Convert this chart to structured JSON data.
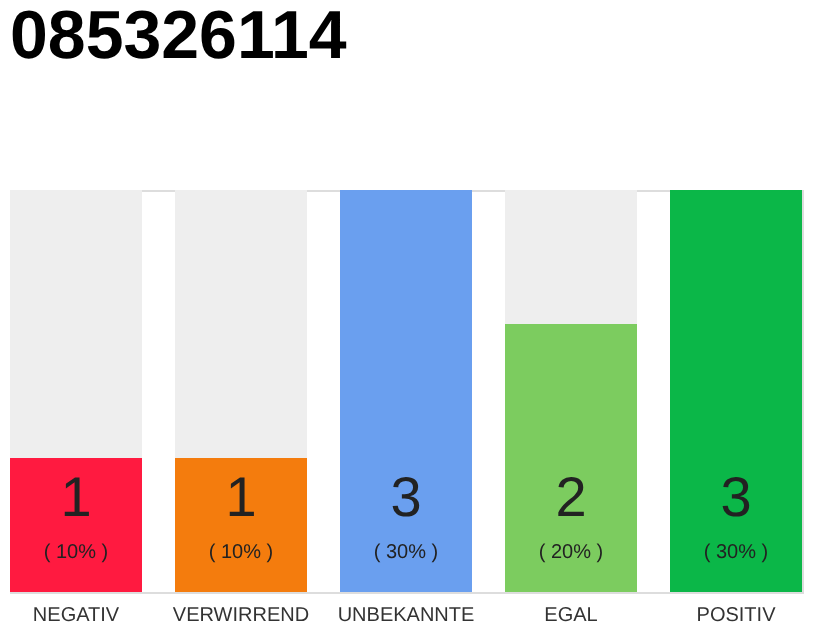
{
  "chart_data": {
    "type": "bar",
    "title": "085326114",
    "categories": [
      "NEGATIV",
      "VERWIRREND",
      "UNBEKANNTE",
      "EGAL",
      "POSITIV"
    ],
    "tick_labels": "x",
    "data_labels": true,
    "colors": [
      "#ff1a40",
      "#f47c0d",
      "#6a9fef",
      "#7ccc5f",
      "#0bb748"
    ],
    "values": [
      1,
      1,
      3,
      2,
      3
    ],
    "annotations": [
      "( 10% )",
      "( 10% )",
      "( 30% )",
      "( 20% )",
      "( 30% )"
    ]
  }
}
